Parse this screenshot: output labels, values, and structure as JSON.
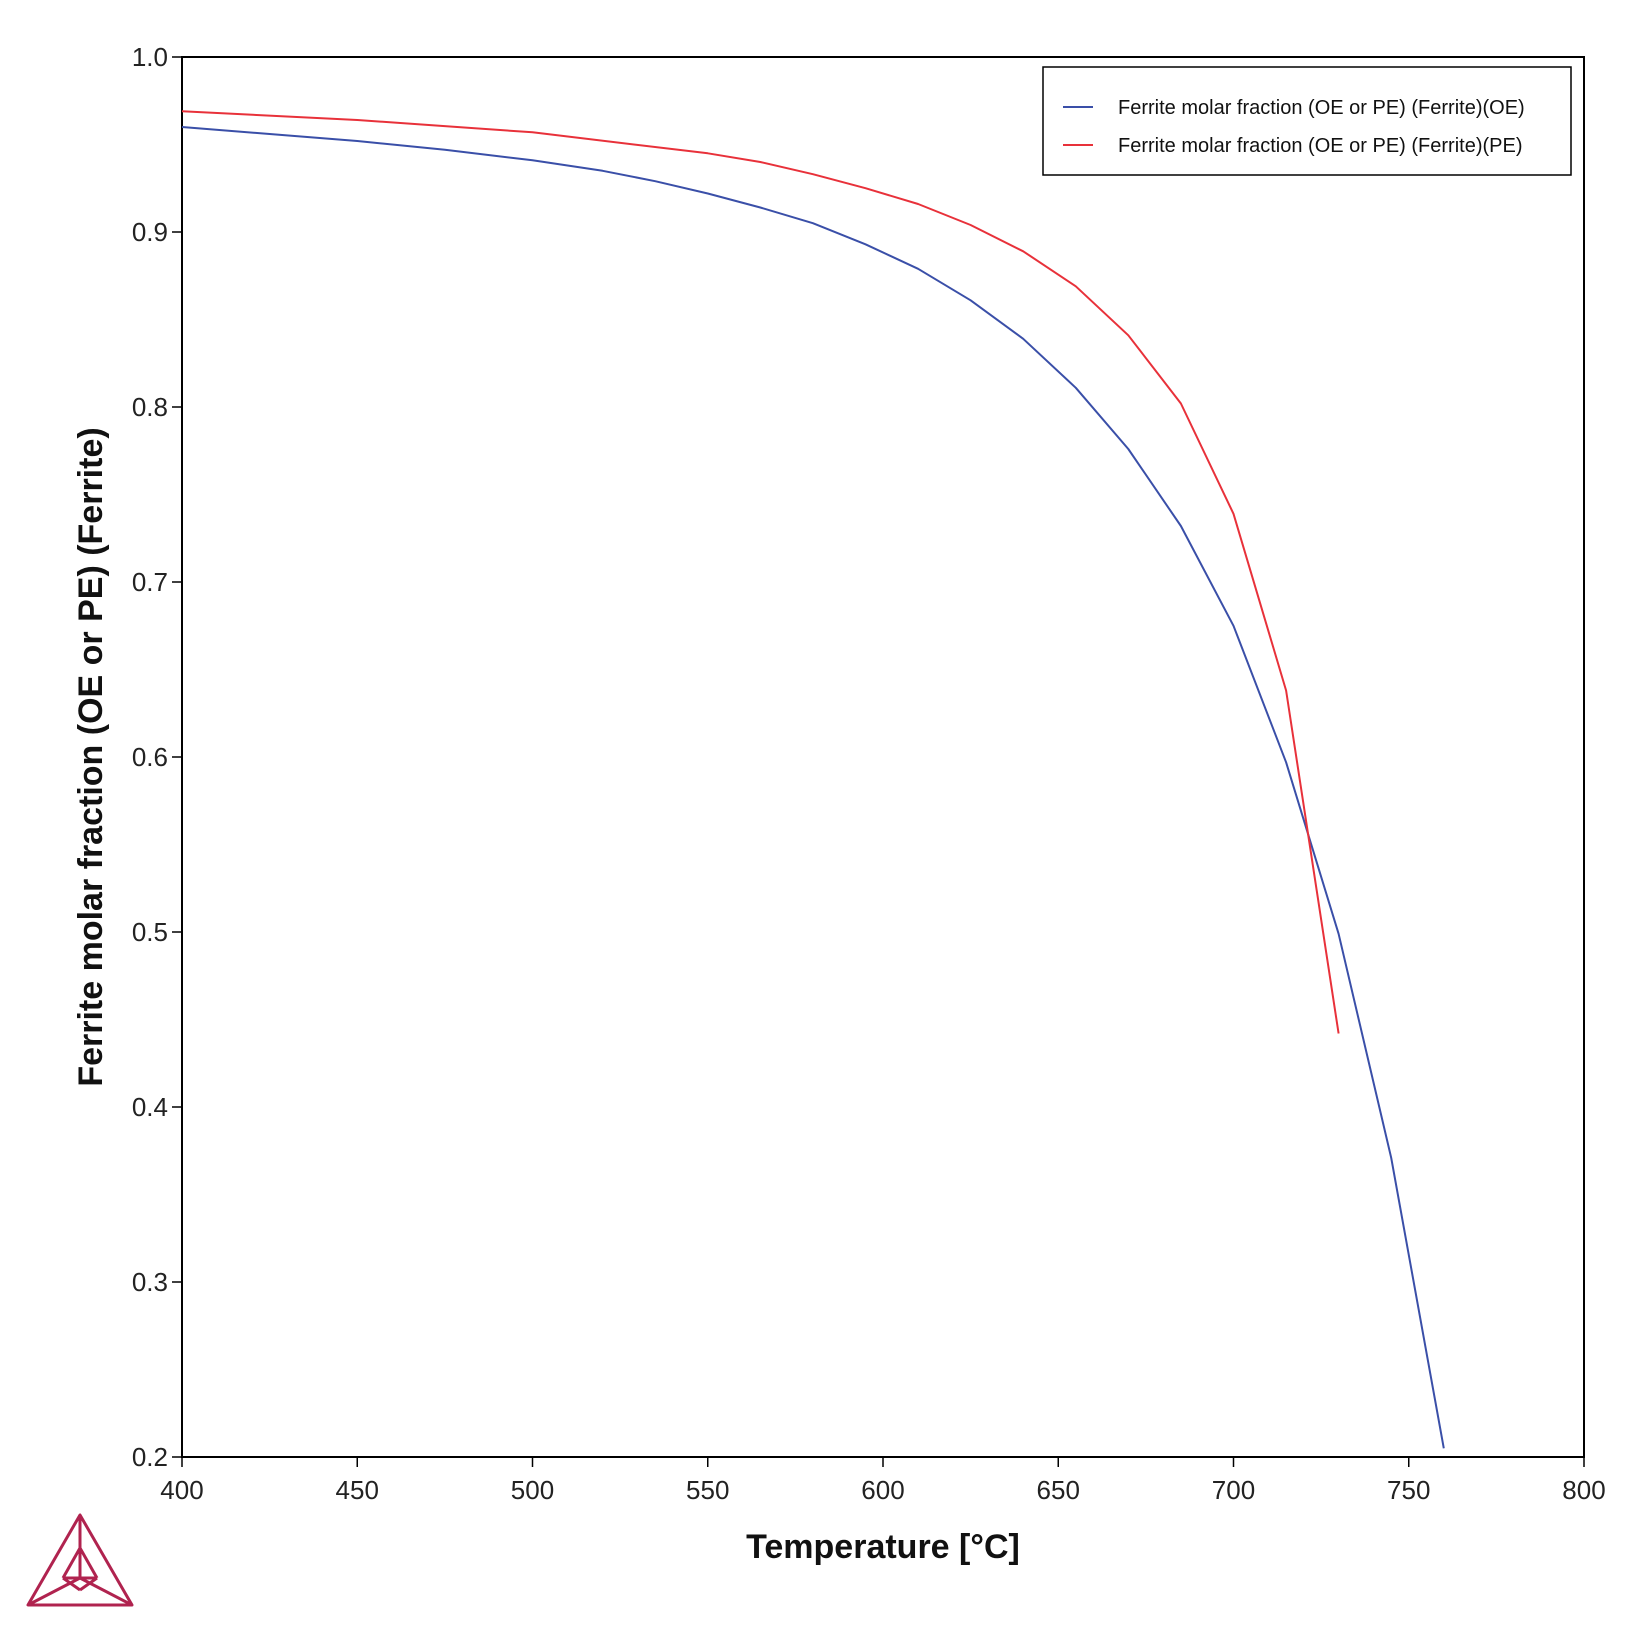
{
  "chart_data": {
    "type": "line",
    "xlabel": "Temperature [°C]",
    "ylabel": "Ferrite molar fraction (OE or PE) (Ferrite)",
    "xlim": [
      400,
      800
    ],
    "ylim": [
      0.2,
      1.0
    ],
    "xticks": [
      400,
      450,
      500,
      550,
      600,
      650,
      700,
      750,
      800
    ],
    "yticks": [
      0.2,
      0.3,
      0.4,
      0.5,
      0.6,
      0.7,
      0.8,
      0.9,
      1.0
    ],
    "xtick_labels": [
      "400",
      "450",
      "500",
      "550",
      "600",
      "650",
      "700",
      "750",
      "800"
    ],
    "ytick_labels": [
      "0.2",
      "0.3",
      "0.4",
      "0.5",
      "0.6",
      "0.7",
      "0.8",
      "0.9",
      "1.0"
    ],
    "grid": false,
    "legend_position": "top-right",
    "series": [
      {
        "name": "Ferrite molar fraction (OE or PE) (Ferrite)(OE)",
        "color": "#3a4fa8",
        "x": [
          400,
          425,
          450,
          475,
          500,
          520,
          535,
          550,
          565,
          580,
          595,
          610,
          625,
          640,
          655,
          670,
          685,
          700,
          715,
          730,
          745,
          760
        ],
        "y": [
          0.96,
          0.956,
          0.952,
          0.947,
          0.941,
          0.935,
          0.929,
          0.922,
          0.914,
          0.905,
          0.893,
          0.879,
          0.861,
          0.839,
          0.811,
          0.776,
          0.732,
          0.675,
          0.597,
          0.499,
          0.371,
          0.205
        ]
      },
      {
        "name": "Ferrite molar fraction (OE or PE) (Ferrite)(PE)",
        "color": "#e8313a",
        "x": [
          400,
          450,
          500,
          550,
          565,
          580,
          595,
          610,
          625,
          640,
          655,
          670,
          685,
          700,
          715,
          730
        ],
        "y": [
          0.969,
          0.964,
          0.957,
          0.945,
          0.94,
          0.933,
          0.925,
          0.916,
          0.904,
          0.889,
          0.869,
          0.841,
          0.802,
          0.739,
          0.638,
          0.442
        ]
      }
    ]
  },
  "logo": {
    "name": "triangle-logo",
    "color": "#b0234f"
  }
}
